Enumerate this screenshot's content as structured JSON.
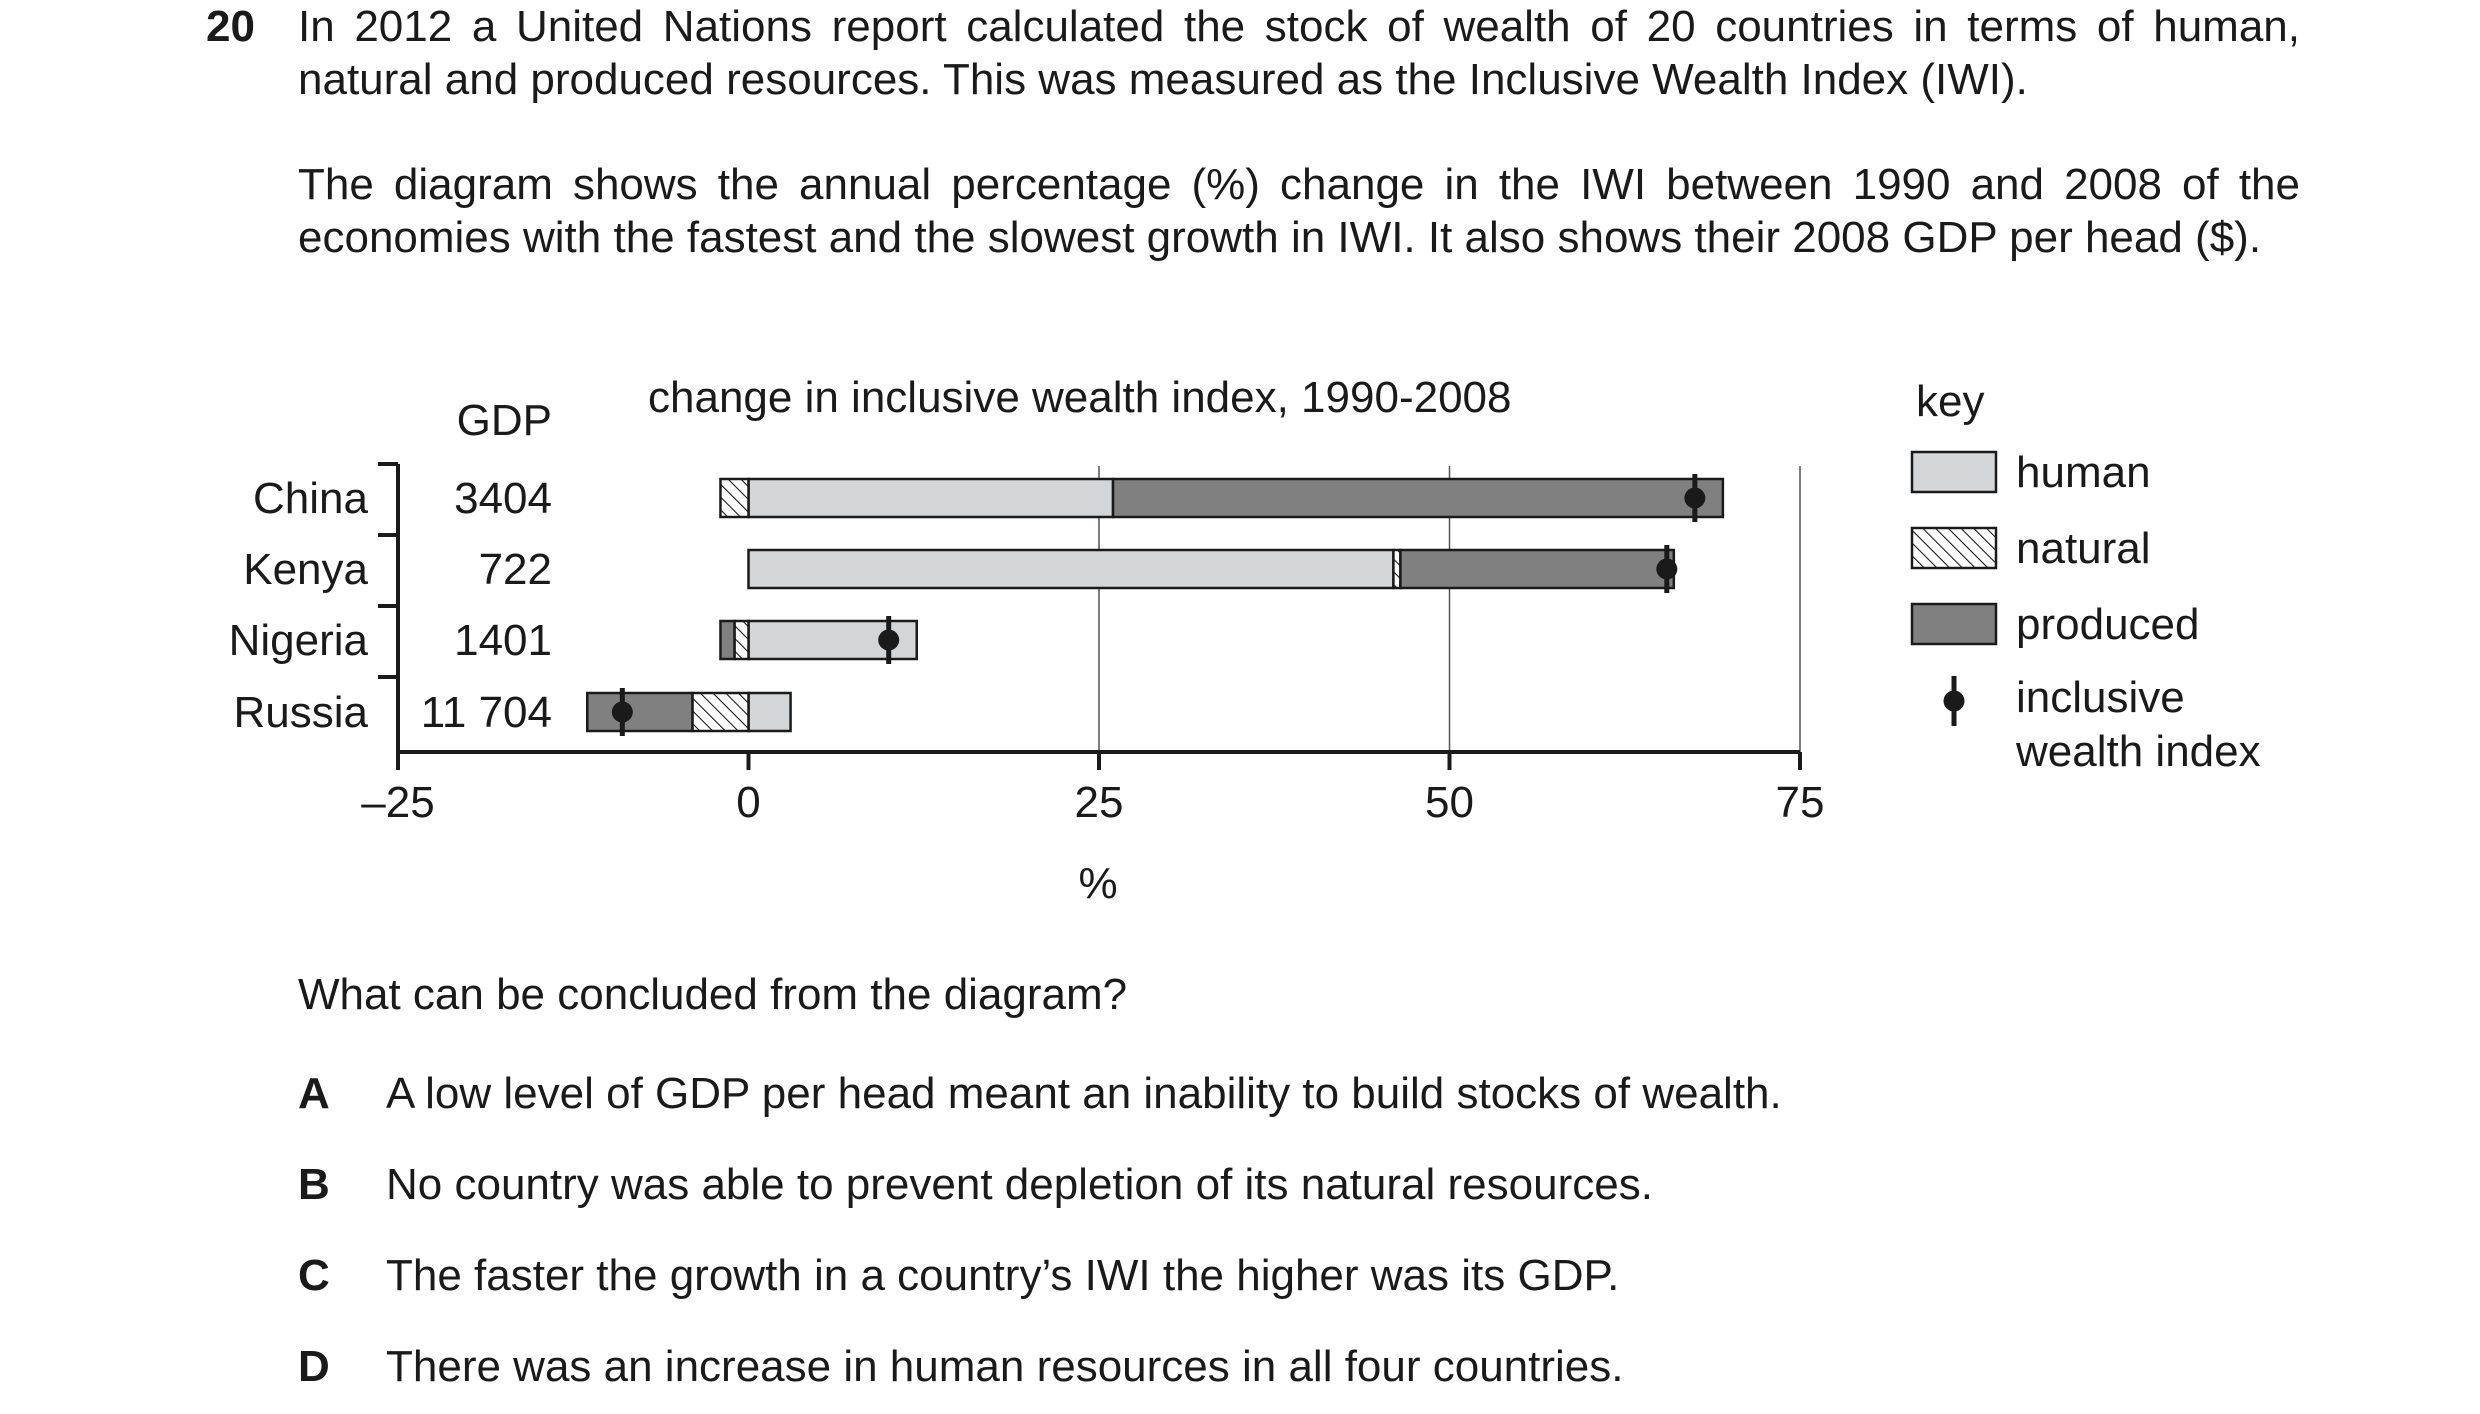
{
  "question": {
    "number": "20",
    "intro_1": "In 2012 a United Nations report calculated the stock of wealth of 20 countries in terms of human, natural and produced resources. This was measured as the Inclusive Wealth Index (IWI).",
    "intro_2": "The diagram shows the annual percentage (%) change in the IWI between 1990 and 2008 of the economies with the fastest and the slowest growth in IWI. It also shows their 2008 GDP per head ($).",
    "prompt": "What can be concluded from the diagram?",
    "options": [
      {
        "letter": "A",
        "text": "A low level of GDP per head meant an inability to build stocks of wealth."
      },
      {
        "letter": "B",
        "text": "No country was able to prevent depletion of its natural resources."
      },
      {
        "letter": "C",
        "text": "The faster the growth in a country’s IWI the higher was its GDP."
      },
      {
        "letter": "D",
        "text": "There was an increase in human resources in all four countries."
      }
    ]
  },
  "chart_data": {
    "type": "bar",
    "orientation": "horizontal",
    "stacked": true,
    "title": "change in inclusive wealth index, 1990-2008",
    "gdp_header": "GDP",
    "xlabel": "%",
    "xlim": [
      -25,
      75
    ],
    "xticks": [
      {
        "value": -25,
        "label": "–25"
      },
      {
        "value": 0,
        "label": "0"
      },
      {
        "value": 25,
        "label": "25"
      },
      {
        "value": 50,
        "label": "50"
      },
      {
        "value": 75,
        "label": "75"
      }
    ],
    "gridlines_at": [
      25,
      50,
      75
    ],
    "categories": [
      "China",
      "Kenya",
      "Nigeria",
      "Russia"
    ],
    "gdp": [
      "3404",
      "722",
      "1401",
      "11 704"
    ],
    "series": [
      {
        "name": "human",
        "key": "human",
        "values": [
          26,
          46,
          12,
          3
        ],
        "fill": "#d4d5d6"
      },
      {
        "name": "natural",
        "key": "natural",
        "values": [
          -2,
          0.5,
          -1,
          -4
        ],
        "fill": "hatch"
      },
      {
        "name": "produced",
        "key": "produced",
        "values": [
          43.5,
          19.5,
          -1,
          -7.5
        ],
        "fill": "#808080"
      }
    ],
    "iwi_values": [
      67.5,
      65.5,
      10,
      -9
    ],
    "legend": {
      "title": "key",
      "placement": "right",
      "items": [
        {
          "key": "human",
          "label": "human"
        },
        {
          "key": "natural",
          "label": "natural"
        },
        {
          "key": "produced",
          "label": "produced"
        },
        {
          "key": "iwi",
          "label_line1": "inclusive",
          "label_line2": "wealth index"
        }
      ]
    }
  }
}
